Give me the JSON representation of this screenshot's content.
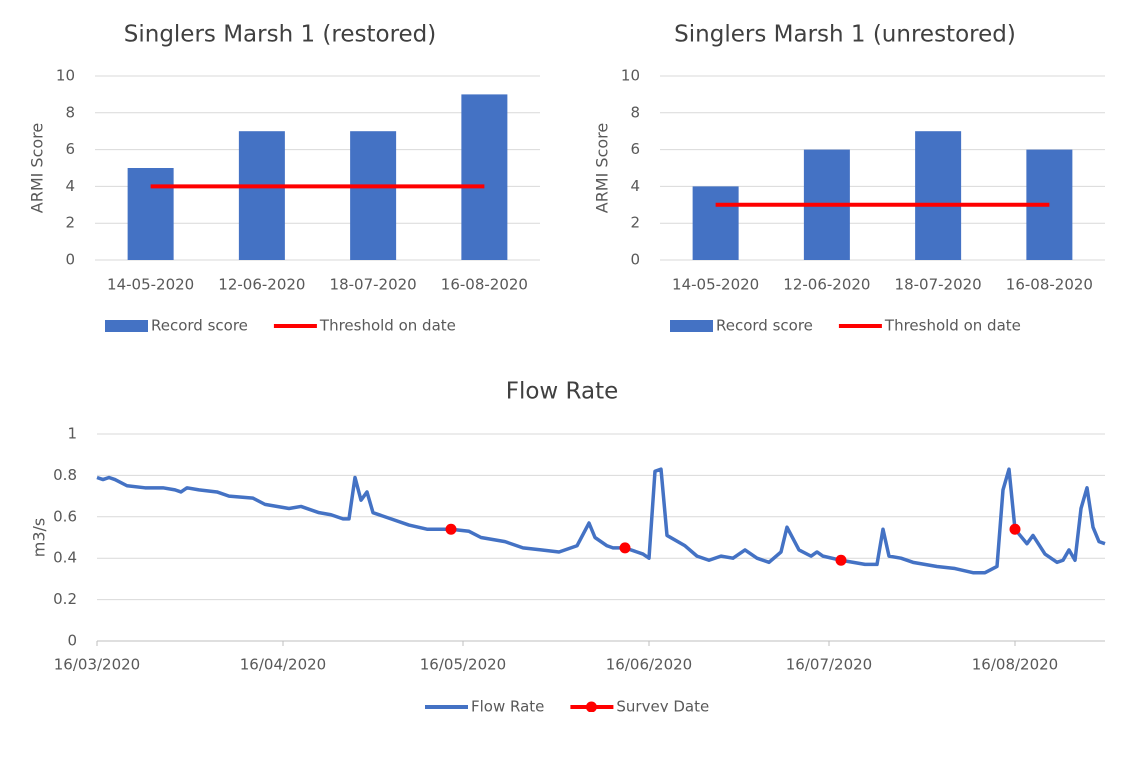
{
  "chart_data": [
    {
      "type": "bar",
      "title": "Singlers Marsh 1 (restored)",
      "y_label": "ARMI Score",
      "categories": [
        "14-05-2020",
        "12-06-2020",
        "18-07-2020",
        "16-08-2020"
      ],
      "series": [
        {
          "name": "Record score",
          "type": "bar",
          "color": "#4472c4",
          "values": [
            5,
            7,
            7,
            9
          ]
        },
        {
          "name": "Threshold on date",
          "type": "line",
          "color": "#ff0000",
          "values": [
            4,
            4,
            4,
            4
          ]
        }
      ],
      "ylim": [
        0,
        10
      ],
      "yticks": [
        0,
        2,
        4,
        6,
        8,
        10
      ],
      "grid": true,
      "legend": "bottom"
    },
    {
      "type": "bar",
      "title": "Singlers Marsh 1 (unrestored)",
      "y_label": "ARMI Score",
      "categories": [
        "14-05-2020",
        "12-06-2020",
        "18-07-2020",
        "16-08-2020"
      ],
      "series": [
        {
          "name": "Record score",
          "type": "bar",
          "color": "#4472c4",
          "values": [
            4,
            6,
            7,
            6
          ]
        },
        {
          "name": "Threshold on date",
          "type": "line",
          "color": "#ff0000",
          "values": [
            3,
            3,
            3,
            3
          ]
        }
      ],
      "ylim": [
        0,
        10
      ],
      "yticks": [
        0,
        2,
        4,
        6,
        8,
        10
      ],
      "grid": true,
      "legend": "bottom"
    },
    {
      "type": "line",
      "title": "Flow Rate",
      "y_label": "m3/s",
      "x": [
        "16/03/2020",
        "17/03/2020",
        "18/03/2020",
        "19/03/2020",
        "21/03/2020",
        "24/03/2020",
        "27/03/2020",
        "29/03/2020",
        "30/03/2020",
        "31/03/2020",
        "02/04/2020",
        "05/04/2020",
        "07/04/2020",
        "11/04/2020",
        "13/04/2020",
        "17/04/2020",
        "19/04/2020",
        "22/04/2020",
        "24/04/2020",
        "26/04/2020",
        "27/04/2020",
        "28/04/2020",
        "29/04/2020",
        "30/04/2020",
        "01/05/2020",
        "04/05/2020",
        "07/05/2020",
        "10/05/2020",
        "12/05/2020",
        "14/05/2020",
        "17/05/2020",
        "19/05/2020",
        "23/05/2020",
        "26/05/2020",
        "29/05/2020",
        "01/06/2020",
        "04/06/2020",
        "06/06/2020",
        "07/06/2020",
        "09/06/2020",
        "10/06/2020",
        "12/06/2020",
        "15/06/2020",
        "16/06/2020",
        "17/06/2020",
        "18/06/2020",
        "19/06/2020",
        "22/06/2020",
        "24/06/2020",
        "26/06/2020",
        "28/06/2020",
        "30/06/2020",
        "02/07/2020",
        "04/07/2020",
        "06/07/2020",
        "08/07/2020",
        "09/07/2020",
        "11/07/2020",
        "13/07/2020",
        "14/07/2020",
        "15/07/2020",
        "18/07/2020",
        "22/07/2020",
        "24/07/2020",
        "25/07/2020",
        "26/07/2020",
        "28/07/2020",
        "30/07/2020",
        "03/08/2020",
        "06/08/2020",
        "09/08/2020",
        "11/08/2020",
        "13/08/2020",
        "14/08/2020",
        "15/08/2020",
        "16/08/2020",
        "18/08/2020",
        "19/08/2020",
        "21/08/2020",
        "23/08/2020",
        "24/08/2020",
        "25/08/2020",
        "26/08/2020",
        "27/08/2020",
        "28/08/2020",
        "29/08/2020",
        "30/08/2020",
        "31/08/2020"
      ],
      "series": [
        {
          "name": "Flow Rate",
          "color": "#4472c4",
          "values": [
            0.79,
            0.78,
            0.79,
            0.78,
            0.75,
            0.74,
            0.74,
            0.73,
            0.72,
            0.74,
            0.73,
            0.72,
            0.7,
            0.69,
            0.66,
            0.64,
            0.65,
            0.62,
            0.61,
            0.59,
            0.59,
            0.79,
            0.68,
            0.72,
            0.62,
            0.59,
            0.56,
            0.54,
            0.54,
            0.54,
            0.53,
            0.5,
            0.48,
            0.45,
            0.44,
            0.43,
            0.46,
            0.57,
            0.5,
            0.46,
            0.45,
            0.45,
            0.42,
            0.4,
            0.82,
            0.83,
            0.51,
            0.46,
            0.41,
            0.39,
            0.41,
            0.4,
            0.44,
            0.4,
            0.38,
            0.43,
            0.55,
            0.44,
            0.41,
            0.43,
            0.41,
            0.39,
            0.37,
            0.37,
            0.54,
            0.41,
            0.4,
            0.38,
            0.36,
            0.35,
            0.33,
            0.33,
            0.36,
            0.73,
            0.83,
            0.54,
            0.47,
            0.51,
            0.42,
            0.38,
            0.39,
            0.44,
            0.39,
            0.64,
            0.74,
            0.55,
            0.48,
            0.47
          ]
        },
        {
          "name": "Survey Date",
          "color": "#ff0000",
          "marker": "dot",
          "x": [
            "14/05/2020",
            "12/06/2020",
            "18/07/2020",
            "16/08/2020"
          ],
          "values": [
            0.54,
            0.45,
            0.39,
            0.54
          ]
        }
      ],
      "xlim": [
        "16/03/2020",
        "31/08/2020"
      ],
      "xticks": [
        "16/03/2020",
        "16/04/2020",
        "16/05/2020",
        "16/06/2020",
        "16/07/2020",
        "16/08/2020"
      ],
      "ylim": [
        0,
        1
      ],
      "yticks": [
        0,
        0.2,
        0.4,
        0.6,
        0.8,
        1
      ],
      "grid": true,
      "legend": "bottom"
    }
  ]
}
